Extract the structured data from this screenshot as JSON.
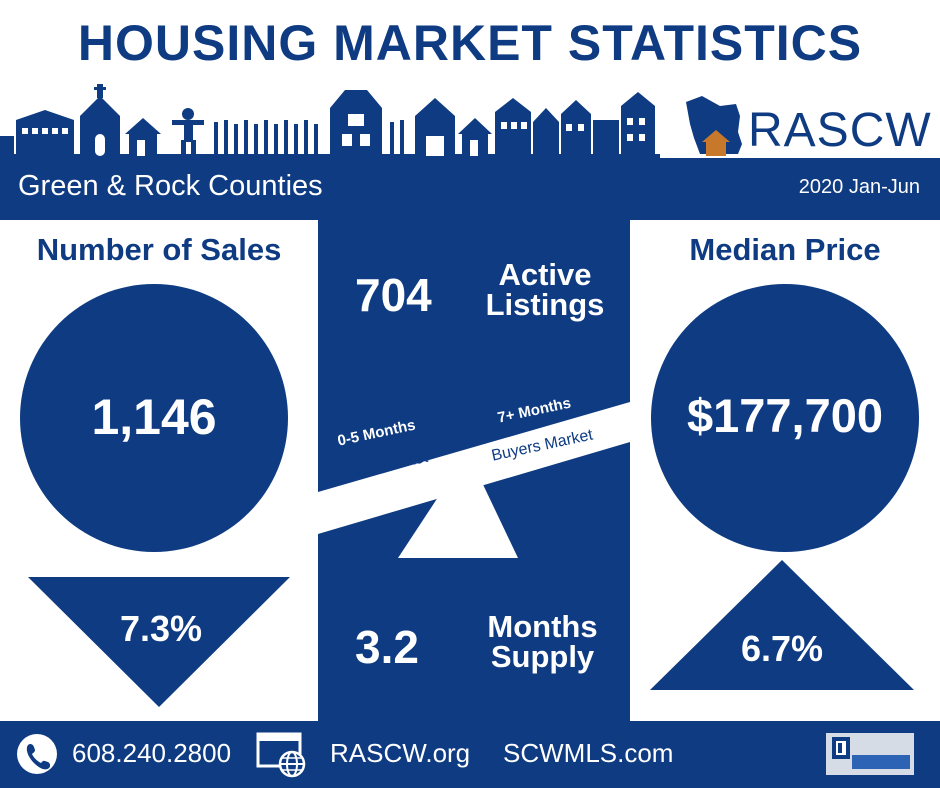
{
  "title": "HOUSING MARKET STATISTICS",
  "logo": {
    "text": "RASCW",
    "icon": "wisconsin-house-icon"
  },
  "header": {
    "region": "Green & Rock Counties",
    "period": "2020 Jan-Jun"
  },
  "sales": {
    "heading": "Number of Sales",
    "value": "1,146",
    "change": "7.3%",
    "direction": "down"
  },
  "median": {
    "heading": "Median Price",
    "value": "$177,700",
    "change": "6.7%",
    "direction": "up"
  },
  "active": {
    "value": "704",
    "label_line1": "Active",
    "label_line2": "Listings"
  },
  "supply": {
    "value": "3.2",
    "label_line1": "Months",
    "label_line2": "Supply"
  },
  "scale": {
    "sellers_range": "0-5 Months",
    "sellers_label": "Sellers Market",
    "buyers_range": "7+ Months",
    "buyers_label": "Buyers Market"
  },
  "footer": {
    "phone": "608.240.2800",
    "site1": "RASCW.org",
    "site2": "SCWMLS.com",
    "phone_icon": "phone-icon",
    "web_icon": "web-globe-icon",
    "mls_logo": "realtor-mls-logo"
  },
  "colors": {
    "navy": "#0e3b82",
    "white": "#ffffff",
    "house_orange": "#c8782a"
  }
}
